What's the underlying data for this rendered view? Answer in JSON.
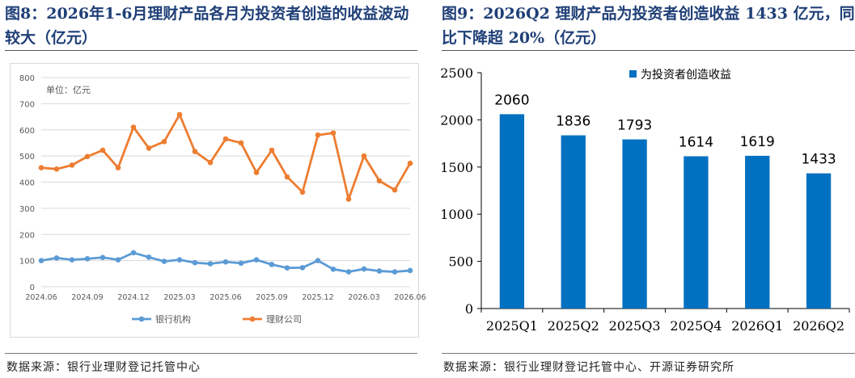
{
  "left": {
    "title": "图8：2026年1-6月理财产品各月为投资者创造的收益波动较大（亿元）",
    "source": "数据来源：银行业理财登记托管中心"
  },
  "right": {
    "title": "图9：2026Q2 理财产品为投资者创造收益 1433 亿元，同比下降超 20%（亿元）",
    "source": "数据来源：银行业理财登记托管中心、开源证券研究所"
  },
  "chart_data": [
    {
      "type": "line",
      "unit_label": "单位：亿元",
      "x": [
        "2024.06",
        "2024.07",
        "2024.08",
        "2024.09",
        "2024.10",
        "2024.11",
        "2024.12",
        "2025.01",
        "2025.02",
        "2025.03",
        "2025.04",
        "2025.05",
        "2025.06",
        "2025.07",
        "2025.08",
        "2025.09",
        "2025.10",
        "2025.11",
        "2025.12",
        "2026.01",
        "2026.02",
        "2026.03",
        "2026.04",
        "2026.05",
        "2026.06"
      ],
      "tick_labels": [
        "2024.06",
        "2024.09",
        "2024.12",
        "2025.03",
        "2025.06",
        "2025.09",
        "2025.12",
        "2026.03",
        "2026.06"
      ],
      "ylim": [
        0,
        800
      ],
      "yticks": [
        0,
        100,
        200,
        300,
        400,
        500,
        600,
        700,
        800
      ],
      "grid": true,
      "legend_position": "bottom",
      "series": [
        {
          "name": "银行机构",
          "color": "#5b9bd5",
          "values": [
            100,
            110,
            103,
            107,
            112,
            103,
            130,
            113,
            97,
            103,
            92,
            88,
            95,
            90,
            103,
            85,
            72,
            73,
            100,
            67,
            57,
            68,
            60,
            57,
            62
          ]
        },
        {
          "name": "理财公司",
          "color": "#ed7d31",
          "values": [
            455,
            450,
            465,
            498,
            522,
            455,
            610,
            530,
            555,
            658,
            517,
            475,
            565,
            550,
            437,
            522,
            420,
            362,
            580,
            588,
            335,
            500,
            405,
            370,
            472
          ]
        }
      ]
    },
    {
      "type": "bar",
      "categories": [
        "2025Q1",
        "2025Q2",
        "2025Q3",
        "2025Q4",
        "2026Q1",
        "2026Q2"
      ],
      "values": [
        2060,
        1836,
        1793,
        1614,
        1619,
        1433
      ],
      "series_name": "为投资者创造收益",
      "color": "#0070c0",
      "ylim": [
        0,
        2500
      ],
      "yticks": [
        0,
        500,
        1000,
        1500,
        2000,
        2500
      ],
      "grid": false,
      "legend_position": "top-right"
    }
  ]
}
